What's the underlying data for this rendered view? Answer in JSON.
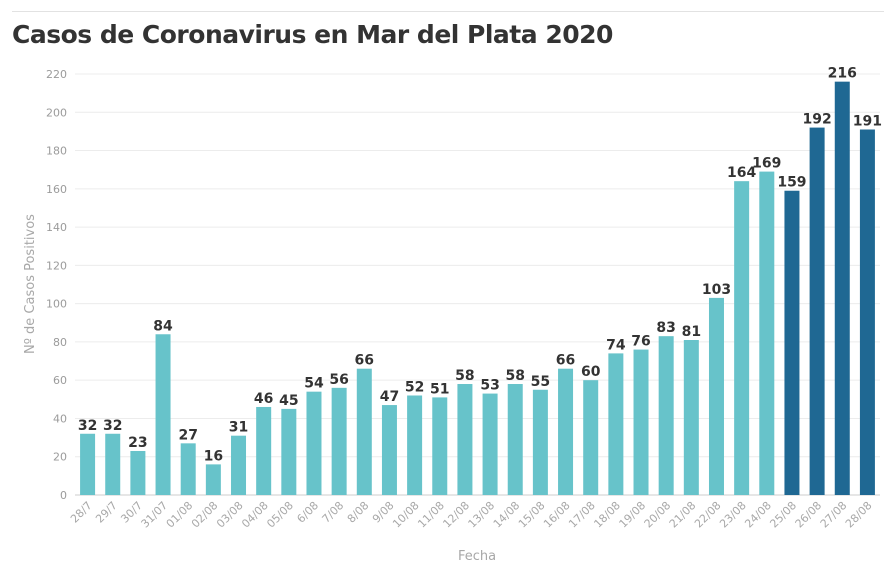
{
  "chart_data": {
    "type": "bar",
    "title": "Casos de Coronavirus en Mar del Plata 2020",
    "xlabel": "Fecha",
    "ylabel": "Nº de Casos Positivos",
    "ylim": [
      0,
      220
    ],
    "yticks": [
      0,
      20,
      40,
      60,
      80,
      100,
      120,
      140,
      160,
      180,
      200,
      220
    ],
    "grid": true,
    "categories": [
      "28/7",
      "29/7",
      "30/7",
      "31/07",
      "01/08",
      "02/08",
      "03/08",
      "04/08",
      "05/08",
      "6/08",
      "7/08",
      "8/08",
      "9/08",
      "10/08",
      "11/08",
      "12/08",
      "13/08",
      "14/08",
      "15/08",
      "16/08",
      "17/08",
      "18/08",
      "19/08",
      "20/08",
      "21/08",
      "22/08",
      "23/08",
      "24/08",
      "25/08",
      "26/08",
      "27/08",
      "28/08"
    ],
    "values": [
      32,
      32,
      23,
      84,
      27,
      16,
      31,
      46,
      45,
      54,
      56,
      66,
      47,
      52,
      51,
      58,
      53,
      58,
      55,
      66,
      60,
      74,
      76,
      83,
      81,
      103,
      164,
      169,
      159,
      192,
      216,
      191
    ],
    "colors": {
      "light": "#67c3ca",
      "dark": "#1f6893"
    },
    "dark_from_category": "25/08"
  }
}
